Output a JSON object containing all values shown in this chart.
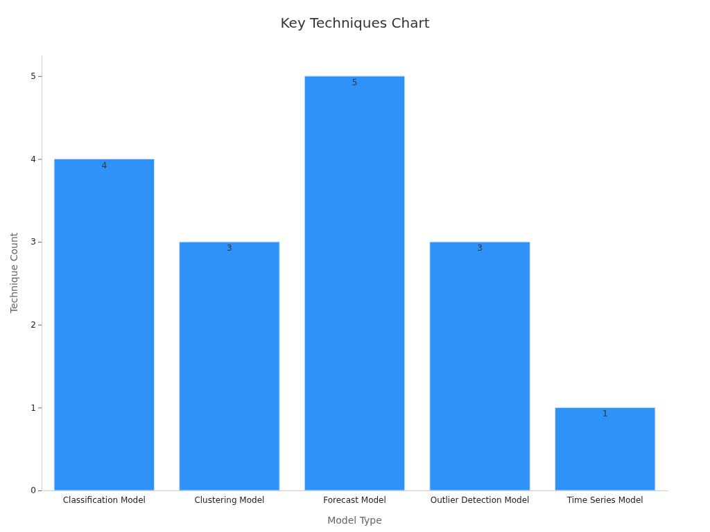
{
  "chart_data": {
    "type": "bar",
    "title": "Key Techniques Chart",
    "xlabel": "Model Type",
    "ylabel": "Technique Count",
    "categories": [
      "Classification Model",
      "Clustering Model",
      "Forecast Model",
      "Outlier Detection Model",
      "Time Series Model"
    ],
    "values": [
      4,
      3,
      5,
      3,
      1
    ],
    "color": "#2f92f8",
    "ylim": [
      0,
      5.25
    ],
    "yticks": [
      0,
      1,
      2,
      3,
      4,
      5
    ],
    "grid": false,
    "data_labels": true
  }
}
